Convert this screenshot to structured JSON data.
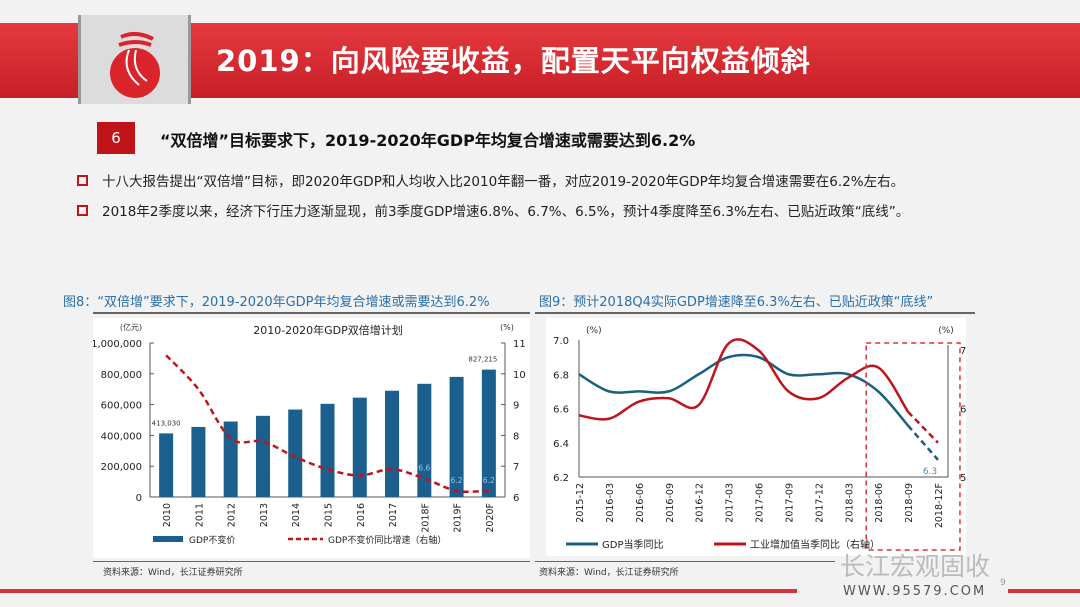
{
  "header": {
    "title": "2019：向风险要收益，配置天平向权益倾斜"
  },
  "section": {
    "number": "6",
    "heading": "“双倍增”目标要求下，2019-2020年GDP年均复合增速或需要达到6.2%"
  },
  "bullets": [
    "十八大报告提出“双倍增”目标，即2020年GDP和人均收入比2010年翻一番，对应2019-2020年GDP年均复合增速需要在6.2%左右。",
    "2018年2季度以来，经济下行压力逐渐显现，前3季度GDP增速6.8%、6.7%、6.5%，预计4季度降至6.3%左右、已贴近政策“底线”。"
  ],
  "fig8": {
    "caption": "图8：“双倍增”要求下，2019-2020年GDP年均复合增速或需要达到6.2%",
    "source": "资料来源：Wind，长江证券研究所"
  },
  "fig9": {
    "caption": "图9：预计2018Q4实际GDP增速降至6.3%左右、已贴近政策“底线”",
    "source": "资料来源：Wind，长江证券研究所"
  },
  "watermark": "长江宏观固收",
  "url": "WWW.95579.COM",
  "page": "9",
  "colors": {
    "brand_red": "#c81e26",
    "bar_blue": "#1a5f8e",
    "line_red": "#c0141b",
    "gdp_line": "#1d5f7f"
  },
  "chart_data": [
    {
      "type": "bar",
      "title": "2010-2020年GDP双倍增计划",
      "ylabel_left": "(亿元)",
      "ylabel_right": "(%)",
      "categories": [
        "2010",
        "2011",
        "2012",
        "2013",
        "2014",
        "2015",
        "2016",
        "2017",
        "2018F",
        "2019F",
        "2020F"
      ],
      "ylim_left": [
        0,
        1000000
      ],
      "yticks_left": [
        "0",
        "200,000",
        "400,000",
        "600,000",
        "800,000",
        "1,000,000"
      ],
      "ylim_right": [
        6,
        11
      ],
      "yticks_right": [
        "6",
        "7",
        "8",
        "9",
        "10",
        "11"
      ],
      "series": [
        {
          "name": "GDP不变价",
          "type": "bar",
          "axis": "left",
          "values": [
            413030,
            455000,
            490000,
            527000,
            568000,
            605000,
            645000,
            690000,
            735000,
            780000,
            827215
          ]
        },
        {
          "name": "GDP不变价同比增速（右轴）",
          "type": "line",
          "style": "dashed",
          "axis": "right",
          "values": [
            10.6,
            9.5,
            7.9,
            7.8,
            7.3,
            6.9,
            6.7,
            6.9,
            6.6,
            6.2,
            6.2
          ]
        }
      ],
      "data_labels": [
        {
          "index": 0,
          "text": "413,030"
        },
        {
          "index": 10,
          "text": "827,215"
        },
        {
          "index": 8,
          "text": "6.6"
        },
        {
          "index": 9,
          "text": "6.2"
        },
        {
          "index": 10,
          "text": "6.2",
          "series": 1
        }
      ],
      "legend": "bottom"
    },
    {
      "type": "line",
      "ylabel_left": "(%)",
      "ylabel_right": "(%)",
      "categories": [
        "2015-12",
        "2016-03",
        "2016-06",
        "2016-09",
        "2016-12",
        "2017-03",
        "2017-06",
        "2017-09",
        "2017-12",
        "2018-03",
        "2018-06",
        "2018-09",
        "2018-12F"
      ],
      "ylim_left": [
        6.2,
        7.0
      ],
      "yticks_left": [
        "6.2",
        "6.4",
        "6.6",
        "6.8",
        "7.0"
      ],
      "ylim_right": [
        5,
        7
      ],
      "yticks_right": [
        "5",
        "6",
        "7"
      ],
      "series": [
        {
          "name": "GDP当季同比",
          "axis": "left",
          "values": [
            6.8,
            6.7,
            6.7,
            6.7,
            6.8,
            6.9,
            6.9,
            6.8,
            6.8,
            6.8,
            6.7,
            6.5,
            6.3
          ],
          "forecast_from": "2018-09"
        },
        {
          "name": "工业增加值当季同比（右轴）",
          "axis": "right",
          "values": [
            5.9,
            5.85,
            6.1,
            6.15,
            6.05,
            6.95,
            6.85,
            6.25,
            6.15,
            6.45,
            6.6,
            5.95,
            5.5
          ],
          "forecast_from": "2018-09"
        }
      ],
      "data_labels": [
        {
          "index": 12,
          "text": "6.3"
        }
      ],
      "legend": "bottom"
    }
  ]
}
